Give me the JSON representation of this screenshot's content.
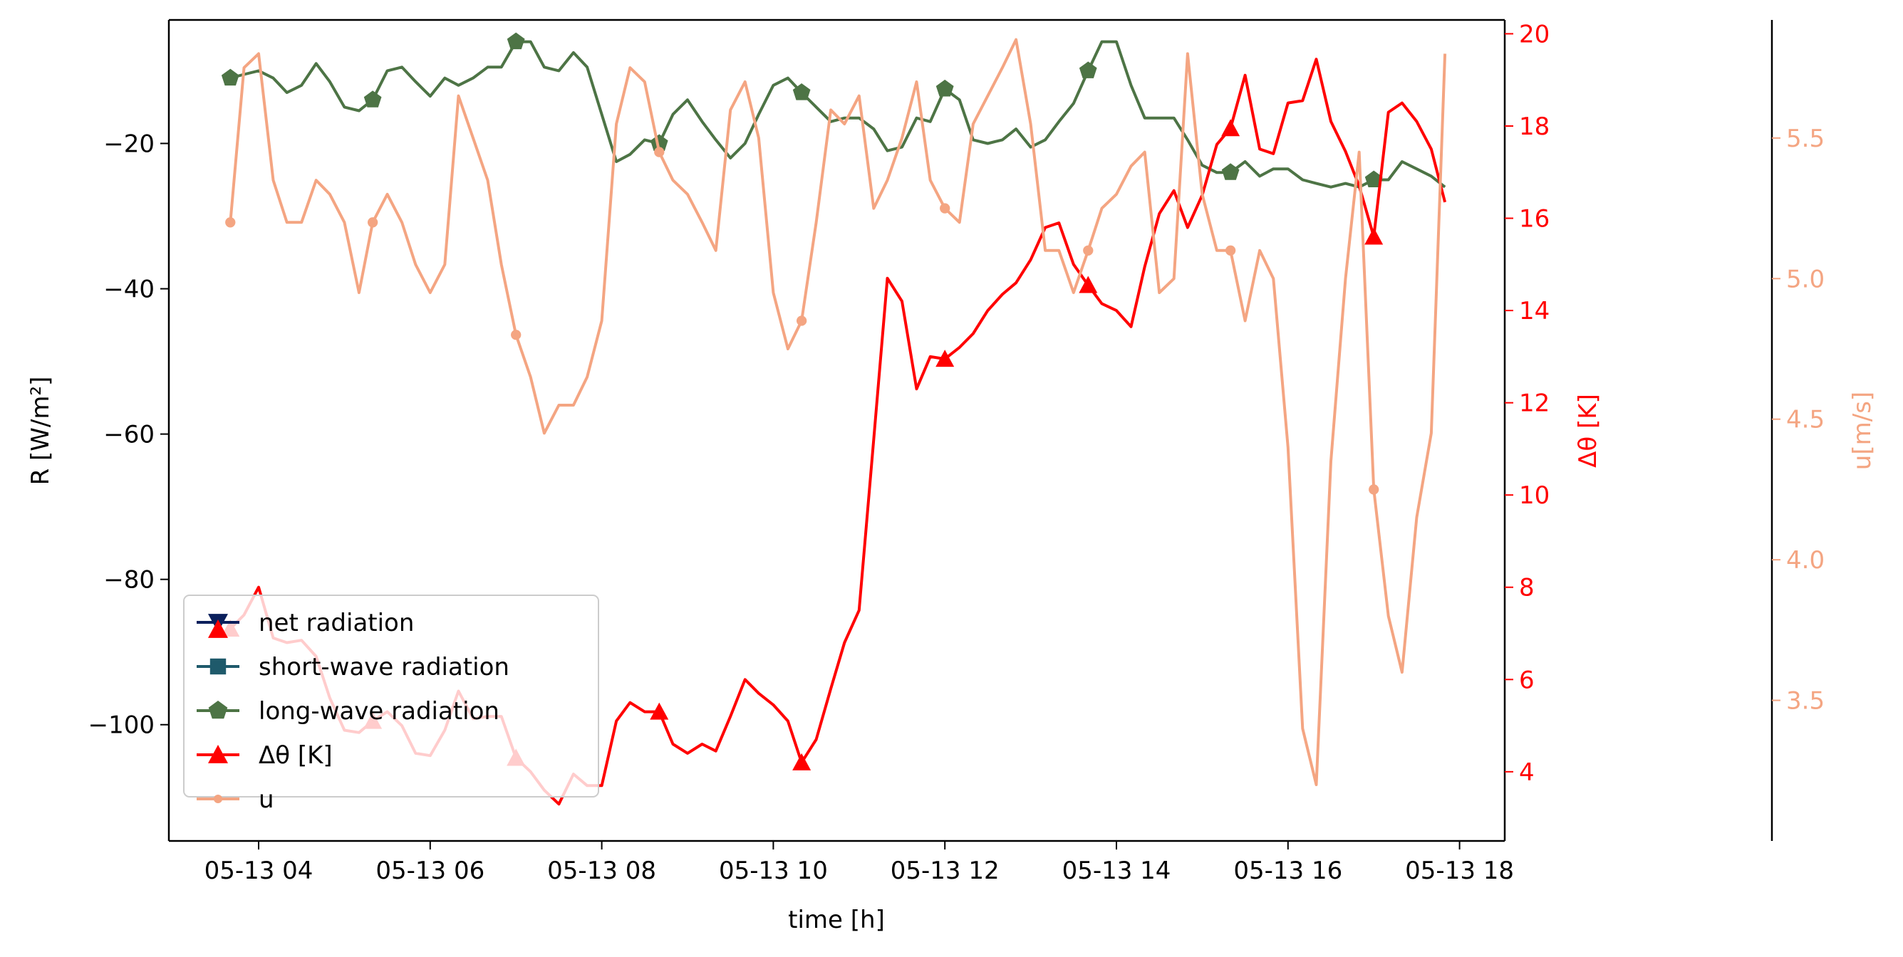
{
  "chart_data": {
    "type": "line",
    "xlabel": "time [h]",
    "ylabel_left": "R [W/m²]",
    "ylabel_right": "Δθ [K]",
    "ylabel_far_right": "u[m/s]",
    "x_ticks": [
      "05-13 04",
      "05-13 06",
      "05-13 08",
      "05-13 10",
      "05-13 12",
      "05-13 14",
      "05-13 16",
      "05-13 18"
    ],
    "left_axis": {
      "ylim": [
        -116,
        -3
      ],
      "ticks": [
        -20,
        -40,
        -60,
        -80,
        -100
      ]
    },
    "right_axis": {
      "ylim": [
        2.5,
        20.3
      ],
      "ticks": [
        4,
        6,
        8,
        10,
        12,
        14,
        16,
        18,
        20
      ],
      "color": "#ff0000"
    },
    "far_right_axis": {
      "ylim": [
        3.0,
        5.92
      ],
      "ticks": [
        3.5,
        4.0,
        4.5,
        5.0,
        5.5
      ],
      "color": "#f4a582"
    },
    "x_hours": [
      3.67,
      3.83,
      4.0,
      4.17,
      4.33,
      4.5,
      4.67,
      4.83,
      5.0,
      5.17,
      5.33,
      5.5,
      5.67,
      5.83,
      6.0,
      6.17,
      6.33,
      6.5,
      6.67,
      6.83,
      7.0,
      7.17,
      7.33,
      7.5,
      7.67,
      7.83,
      8.0,
      8.17,
      8.33,
      8.5,
      8.67,
      8.83,
      9.0,
      9.17,
      9.33,
      9.5,
      9.67,
      9.83,
      10.0,
      10.17,
      10.33,
      10.5,
      10.67,
      10.83,
      11.0,
      11.17,
      11.33,
      11.5,
      11.67,
      11.83,
      12.0,
      12.17,
      12.33,
      12.5,
      12.67,
      12.83,
      13.0,
      13.17,
      13.33,
      13.5,
      13.67,
      13.83,
      14.0,
      14.17,
      14.33,
      14.5,
      14.67,
      14.83,
      15.0,
      15.17,
      15.33,
      15.5,
      15.67,
      15.83,
      16.0,
      16.17,
      16.33,
      16.5,
      16.67,
      16.83,
      17.0,
      17.17,
      17.33,
      17.5,
      17.67,
      17.83
    ],
    "series": [
      {
        "name": "net radiation",
        "axis": "left",
        "color": "#0a1f5c",
        "marker": "triangle-down",
        "values": []
      },
      {
        "name": "short-wave radiation",
        "axis": "left",
        "color": "#1f5a6b",
        "marker": "square",
        "values": []
      },
      {
        "name": "long-wave radiation",
        "axis": "left",
        "color": "#4d7445",
        "marker": "pentagon",
        "marker_every": 10,
        "values": [
          -11,
          -10.5,
          -10,
          -11,
          -13,
          -12,
          -9,
          -11.5,
          -15,
          -15.5,
          -14,
          -10,
          -9.5,
          -11.5,
          -13.5,
          -11,
          -12,
          -11,
          -9.5,
          -9.5,
          -6,
          -6,
          -9.5,
          -10,
          -7.5,
          -9.5,
          -16,
          -22.5,
          -21.5,
          -19.5,
          -20,
          -16,
          -14,
          -17,
          -19.5,
          -22,
          -20,
          -16,
          -12,
          -11,
          -13,
          -15,
          -17,
          -16.5,
          -16.5,
          -18,
          -21,
          -20.5,
          -16.5,
          -17,
          -12.5,
          -14,
          -19.5,
          -20,
          -19.5,
          -18,
          -20.5,
          -19.5,
          -17,
          -14.5,
          -10,
          -6,
          -6,
          -12,
          -16.5,
          -16.5,
          -16.5,
          -19.5,
          -23,
          -24,
          -24,
          -22.5,
          -24.5,
          -23.5,
          -23.5,
          -25,
          -25.5,
          -26,
          -25.5,
          -26,
          -25,
          -25,
          -22.5,
          -23.5,
          -24.5,
          -26
        ]
      },
      {
        "name": "Δθ [K]",
        "axis": "right",
        "color": "#ff0000",
        "marker": "triangle-up",
        "marker_every": 10,
        "values": [
          7.1,
          7.4,
          8.0,
          6.9,
          6.8,
          6.85,
          6.5,
          5.6,
          4.9,
          4.85,
          5.1,
          5.3,
          5.0,
          4.4,
          4.35,
          4.9,
          5.75,
          5.15,
          5.2,
          5.2,
          4.3,
          4.0,
          3.6,
          3.3,
          3.95,
          3.7,
          3.7,
          5.1,
          5.5,
          5.3,
          5.3,
          4.6,
          4.4,
          4.6,
          4.45,
          5.2,
          6.0,
          5.7,
          5.45,
          5.1,
          4.2,
          4.7,
          5.8,
          6.8,
          7.5,
          11.2,
          14.7,
          14.2,
          12.3,
          13.0,
          12.95,
          13.2,
          13.5,
          14.0,
          14.35,
          14.6,
          15.1,
          15.8,
          15.9,
          15.0,
          14.55,
          14.15,
          14.0,
          13.65,
          14.95,
          16.1,
          16.6,
          15.8,
          16.5,
          17.6,
          17.95,
          19.1,
          17.5,
          17.4,
          18.5,
          18.55,
          19.45,
          18.1,
          17.45,
          16.7,
          15.6,
          18.3,
          18.5,
          18.1,
          17.5,
          16.35
        ]
      },
      {
        "name": "u",
        "axis": "far_right",
        "color": "#f4a582",
        "marker": "circle",
        "marker_every": 10,
        "values": [
          5.2,
          5.75,
          5.8,
          5.35,
          5.2,
          5.2,
          5.35,
          5.3,
          5.2,
          4.95,
          5.2,
          5.3,
          5.2,
          5.05,
          4.95,
          5.05,
          5.65,
          5.5,
          5.35,
          5.05,
          4.8,
          4.65,
          4.45,
          4.55,
          4.55,
          4.65,
          4.85,
          5.55,
          5.75,
          5.7,
          5.45,
          5.35,
          5.3,
          5.2,
          5.1,
          5.6,
          5.7,
          5.5,
          4.95,
          4.75,
          4.85,
          5.2,
          5.6,
          5.55,
          5.65,
          5.25,
          5.35,
          5.5,
          5.7,
          5.35,
          5.25,
          5.2,
          5.55,
          5.65,
          5.75,
          5.85,
          5.55,
          5.1,
          5.1,
          4.95,
          5.1,
          5.25,
          5.3,
          5.4,
          5.45,
          4.95,
          5.0,
          5.8,
          5.3,
          5.1,
          5.1,
          4.85,
          5.1,
          5.0,
          4.4,
          3.4,
          3.2,
          4.35,
          5.0,
          5.45,
          4.25,
          3.8,
          3.6,
          4.15,
          4.45,
          5.8
        ]
      }
    ],
    "legend": {
      "placement": "lower-left",
      "entries": [
        "net radiation",
        "short-wave radiation",
        "long-wave radiation",
        "Δθ [K]",
        "u"
      ]
    },
    "grid": false
  }
}
